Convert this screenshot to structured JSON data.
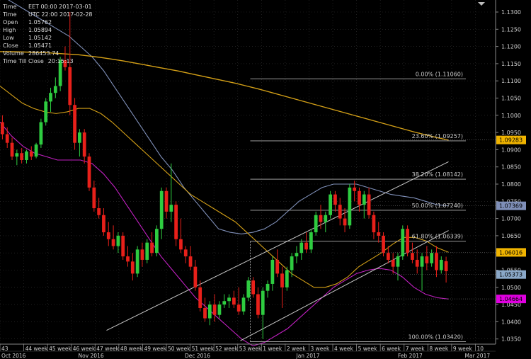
{
  "info_panel": {
    "rows": [
      {
        "label": "Time",
        "value": "EET 00:00 2017-03-01"
      },
      {
        "label": "Time",
        "value": "UTC 22:00 2017-02-28"
      },
      {
        "label": "Open",
        "value": "1.05762"
      },
      {
        "label": "High",
        "value": "1.05894"
      },
      {
        "label": "Low",
        "value": "1.05142"
      },
      {
        "label": "Close",
        "value": "1.05471"
      },
      {
        "label": "Volume",
        "value": "286453.74"
      },
      {
        "label": "Time Till Close",
        "value": "20:15:13"
      }
    ]
  },
  "colors": {
    "background": "#000000",
    "bull": "#2ecc40",
    "bear": "#e8201a",
    "ma_long": "#d4a017",
    "ma_short": "#d4a017",
    "bb_upper": "#7f8fb8",
    "bb_lower": "#c020c0",
    "grid": "#333333",
    "fib_line": "#b0b0b0",
    "channel": "#c8c8c8"
  },
  "chart_data": {
    "type": "candlestick",
    "ylim": [
      1.0335,
      1.1335
    ],
    "y_ticks": [
      "1.1300",
      "1.1250",
      "1.1200",
      "1.1150",
      "1.1100",
      "1.1050",
      "1.1000",
      "1.0950",
      "1.0900",
      "1.0850",
      "1.0800",
      "1.0750",
      "1.0700",
      "1.0650",
      "1.0600",
      "1.0550",
      "1.0500",
      "1.0450",
      "1.0400",
      "1.0350"
    ],
    "y_tick_values": [
      1.13,
      1.125,
      1.12,
      1.115,
      1.11,
      1.105,
      1.1,
      1.095,
      1.09,
      1.085,
      1.08,
      1.075,
      1.07,
      1.065,
      1.06,
      1.055,
      1.05,
      1.045,
      1.04,
      1.035
    ],
    "x_week_labels": [
      "43",
      "44 week",
      "45 week",
      "46 week",
      "47 week",
      "48 week",
      "49 week",
      "50 week",
      "51 week",
      "52 week",
      "53 week",
      "1 week",
      "2 week",
      "3 week",
      "4 week",
      "5 week",
      "6 week",
      "7 week",
      "8 week",
      "9 week",
      "10"
    ],
    "x_month_labels": [
      "Oct 2016",
      "Nov 2016",
      "Dec 2016",
      "Jan 2017",
      "Feb 2017",
      "Mar 2017"
    ],
    "price_tags": [
      {
        "label": "1.09283",
        "value": 1.09283,
        "bg": "#f0b400",
        "fg": "#000000"
      },
      {
        "label": "1.07369",
        "value": 1.07369,
        "bg": "#7f8fb8",
        "fg": "#000000"
      },
      {
        "label": "1.06016",
        "value": 1.06016,
        "bg": "#f0b400",
        "fg": "#000000"
      },
      {
        "label": "1.05373",
        "value": 1.05373,
        "bg": "#8aa8c8",
        "fg": "#000000"
      },
      {
        "label": "1.04664",
        "value": 1.04664,
        "bg": "#e000e0",
        "fg": "#000000"
      }
    ],
    "fibonacci": [
      {
        "label": "0.00% (1.11060)",
        "value": 1.1106
      },
      {
        "label": "23.60% (1.09257)",
        "value": 1.09257
      },
      {
        "label": "38.20% (1.08142)",
        "value": 1.08142
      },
      {
        "label": "50.00% (1.07240)",
        "value": 1.0724
      },
      {
        "label": "61.80% (1.06339)",
        "value": 1.06339
      },
      {
        "label": "100.00% (1.03420)",
        "value": 1.0342
      }
    ],
    "candles": [
      [
        1.098,
        1.1,
        1.093,
        1.0945
      ],
      [
        1.0945,
        1.0965,
        1.0905,
        1.092
      ],
      [
        1.092,
        1.0935,
        1.087,
        1.088
      ],
      [
        1.088,
        1.09,
        1.0855,
        1.089
      ],
      [
        1.089,
        1.0905,
        1.086,
        1.087
      ],
      [
        1.087,
        1.09,
        1.086,
        1.0895
      ],
      [
        1.0895,
        1.091,
        1.087,
        1.088
      ],
      [
        1.088,
        1.092,
        1.0875,
        1.0915
      ],
      [
        1.0915,
        1.099,
        1.0905,
        1.098
      ],
      [
        1.098,
        1.105,
        1.097,
        1.104
      ],
      [
        1.104,
        1.108,
        1.101,
        1.1065
      ],
      [
        1.1065,
        1.111,
        1.105,
        1.1085
      ],
      [
        1.1085,
        1.117,
        1.107,
        1.116
      ],
      [
        1.116,
        1.12,
        1.113,
        1.114
      ],
      [
        1.114,
        1.13,
        1.1,
        1.103
      ],
      [
        1.103,
        1.105,
        1.09,
        1.092
      ],
      [
        1.092,
        1.096,
        1.088,
        1.095
      ],
      [
        1.095,
        1.096,
        1.086,
        1.088
      ],
      [
        1.088,
        1.089,
        1.078,
        1.079
      ],
      [
        1.079,
        1.081,
        1.072,
        1.073
      ],
      [
        1.073,
        1.076,
        1.07,
        1.071
      ],
      [
        1.071,
        1.073,
        1.065,
        1.066
      ],
      [
        1.066,
        1.069,
        1.062,
        1.064
      ],
      [
        1.064,
        1.068,
        1.061,
        1.062
      ],
      [
        1.062,
        1.066,
        1.06,
        1.065
      ],
      [
        1.065,
        1.066,
        1.058,
        1.059
      ],
      [
        1.059,
        1.062,
        1.056,
        1.0575
      ],
      [
        1.0575,
        1.06,
        1.052,
        1.054
      ],
      [
        1.054,
        1.062,
        1.053,
        1.061
      ],
      [
        1.061,
        1.063,
        1.056,
        1.058
      ],
      [
        1.058,
        1.064,
        1.057,
        1.063
      ],
      [
        1.063,
        1.066,
        1.059,
        1.06
      ],
      [
        1.06,
        1.068,
        1.059,
        1.067
      ],
      [
        1.067,
        1.079,
        1.064,
        1.078
      ],
      [
        1.078,
        1.079,
        1.07,
        1.072
      ],
      [
        1.072,
        1.086,
        1.069,
        1.074
      ],
      [
        1.074,
        1.075,
        1.062,
        1.064
      ],
      [
        1.064,
        1.07,
        1.06,
        1.061
      ],
      [
        1.061,
        1.062,
        1.057,
        1.059
      ],
      [
        1.059,
        1.062,
        1.055,
        1.056
      ],
      [
        1.056,
        1.058,
        1.049,
        1.05
      ],
      [
        1.05,
        1.052,
        1.043,
        1.044
      ],
      [
        1.044,
        1.047,
        1.04,
        1.041
      ],
      [
        1.041,
        1.046,
        1.039,
        1.045
      ],
      [
        1.045,
        1.048,
        1.04,
        1.042
      ],
      [
        1.042,
        1.046,
        1.041,
        1.045
      ],
      [
        1.045,
        1.048,
        1.044,
        1.046
      ],
      [
        1.046,
        1.048,
        1.044,
        1.047
      ],
      [
        1.047,
        1.049,
        1.044,
        1.045
      ],
      [
        1.045,
        1.05,
        1.042,
        1.043
      ],
      [
        1.043,
        1.048,
        1.042,
        1.047
      ],
      [
        1.047,
        1.053,
        1.046,
        1.052
      ],
      [
        1.052,
        1.053,
        1.047,
        1.048
      ],
      [
        1.048,
        1.05,
        1.041,
        1.042
      ],
      [
        1.042,
        1.05,
        1.035,
        1.049
      ],
      [
        1.049,
        1.052,
        1.047,
        1.051
      ],
      [
        1.051,
        1.059,
        1.049,
        1.058
      ],
      [
        1.058,
        1.061,
        1.053,
        1.054
      ],
      [
        1.054,
        1.056,
        1.044,
        1.05
      ],
      [
        1.05,
        1.056,
        1.049,
        1.055
      ],
      [
        1.055,
        1.06,
        1.053,
        1.059
      ],
      [
        1.059,
        1.062,
        1.057,
        1.06
      ],
      [
        1.06,
        1.064,
        1.058,
        1.063
      ],
      [
        1.063,
        1.066,
        1.06,
        1.061
      ],
      [
        1.061,
        1.067,
        1.06,
        1.066
      ],
      [
        1.066,
        1.072,
        1.065,
        1.071
      ],
      [
        1.071,
        1.074,
        1.067,
        1.069
      ],
      [
        1.069,
        1.072,
        1.066,
        1.071
      ],
      [
        1.071,
        1.078,
        1.07,
        1.077
      ],
      [
        1.077,
        1.078,
        1.072,
        1.074
      ],
      [
        1.074,
        1.076,
        1.068,
        1.07
      ],
      [
        1.07,
        1.073,
        1.066,
        1.068
      ],
      [
        1.068,
        1.08,
        1.067,
        1.079
      ],
      [
        1.079,
        1.081,
        1.075,
        1.078
      ],
      [
        1.078,
        1.079,
        1.072,
        1.074
      ],
      [
        1.074,
        1.078,
        1.07,
        1.077
      ],
      [
        1.077,
        1.079,
        1.07,
        1.071
      ],
      [
        1.071,
        1.072,
        1.064,
        1.066
      ],
      [
        1.066,
        1.069,
        1.063,
        1.065
      ],
      [
        1.065,
        1.066,
        1.059,
        1.06
      ],
      [
        1.06,
        1.062,
        1.057,
        1.058
      ],
      [
        1.058,
        1.06,
        1.054,
        1.056
      ],
      [
        1.056,
        1.06,
        1.052,
        1.059
      ],
      [
        1.059,
        1.068,
        1.058,
        1.067
      ],
      [
        1.067,
        1.068,
        1.059,
        1.06
      ],
      [
        1.06,
        1.063,
        1.057,
        1.058
      ],
      [
        1.058,
        1.061,
        1.054,
        1.056
      ],
      [
        1.056,
        1.06,
        1.049,
        1.059
      ],
      [
        1.059,
        1.062,
        1.055,
        1.057
      ],
      [
        1.057,
        1.061,
        1.056,
        1.06
      ],
      [
        1.06,
        1.062,
        1.053,
        1.055
      ],
      [
        1.055,
        1.059,
        1.054,
        1.058
      ],
      [
        1.0576,
        1.0589,
        1.0514,
        1.0547
      ]
    ],
    "ma_long": [
      1.1185,
      1.1185,
      1.1184,
      1.1183,
      1.1182,
      1.118,
      1.1178,
      1.1176,
      1.1172,
      1.1168,
      1.1163,
      1.1158,
      1.1152,
      1.1146,
      1.114,
      1.1134,
      1.1128,
      1.1121,
      1.1114,
      1.1107,
      1.11,
      1.1093,
      1.1085,
      1.1077,
      1.1068,
      1.1059,
      1.105,
      1.1041,
      1.1032,
      1.1023,
      1.1014,
      1.1005,
      1.0996,
      1.0987,
      1.0978,
      1.0969,
      1.096,
      1.0951,
      1.0943,
      1.0935,
      1.0928
    ],
    "bb_upper": [
      1.135,
      1.133,
      1.131,
      1.129,
      1.127,
      1.125,
      1.123,
      1.12,
      1.117,
      1.113,
      1.108,
      1.103,
      1.098,
      1.093,
      1.088,
      1.084,
      1.079,
      1.075,
      1.071,
      1.067,
      1.066,
      1.0655,
      1.066,
      1.067,
      1.069,
      1.072,
      1.075,
      1.077,
      1.079,
      1.08,
      1.08,
      1.08,
      1.079,
      1.078,
      1.077,
      1.0765,
      1.076,
      1.075,
      1.074,
      1.0737
    ],
    "bb_lower": [
      1.098,
      1.094,
      1.091,
      1.089,
      1.088,
      1.087,
      1.087,
      1.087,
      1.086,
      1.083,
      1.079,
      1.074,
      1.069,
      1.064,
      1.059,
      1.055,
      1.051,
      1.047,
      1.044,
      1.041,
      1.038,
      1.035,
      1.033,
      1.034,
      1.036,
      1.038,
      1.041,
      1.044,
      1.047,
      1.05,
      1.052,
      1.054,
      1.055,
      1.0555,
      1.055,
      1.053,
      1.05,
      1.048,
      1.047,
      1.0466
    ],
    "ma_short": [
      1.1085,
      1.106,
      1.1035,
      1.102,
      1.101,
      1.1005,
      1.101,
      1.102,
      1.102,
      1.1005,
      1.098,
      1.095,
      1.092,
      1.089,
      1.086,
      1.083,
      1.08,
      1.077,
      1.075,
      1.073,
      1.071,
      1.069,
      1.066,
      1.063,
      1.06,
      1.057,
      1.054,
      1.052,
      1.05,
      1.05,
      1.051,
      1.053,
      1.056,
      1.058,
      1.06,
      1.0625,
      1.0645,
      1.0645,
      1.0635,
      1.0615,
      1.0602
    ],
    "channel_upper": [
      [
        1.0375,
        0.215
      ],
      [
        1.0865,
        0.905
      ]
    ],
    "channel_lower": [
      [
        1.0345,
        0.485
      ],
      [
        1.0665,
        0.905
      ]
    ],
    "grid": true
  }
}
